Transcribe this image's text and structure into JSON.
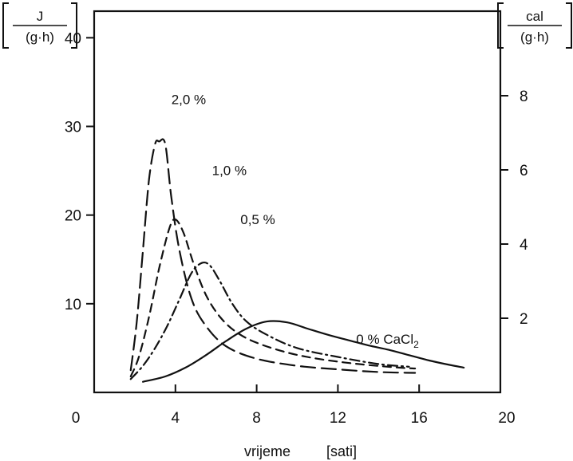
{
  "chart_data": {
    "type": "line",
    "x_label": "vrijeme",
    "x_unit": "[sati]",
    "xlim": [
      0,
      20
    ],
    "x_ticks": [
      "0",
      "4",
      "8",
      "12",
      "16",
      "20"
    ],
    "x_tick_values": [
      0,
      4,
      8,
      12,
      16,
      20
    ],
    "y_left_unit": {
      "numerator": "J",
      "denominator": "(g·h)"
    },
    "y_left_lim": [
      0,
      43
    ],
    "y_left_ticks": [
      "10",
      "20",
      "30",
      "40"
    ],
    "y_left_tick_values": [
      10,
      20,
      30,
      40
    ],
    "y_right_unit": {
      "numerator": "cal",
      "denominator": "(g·h)"
    },
    "y_right_lim": [
      0,
      10.28
    ],
    "y_right_ticks": [
      "2",
      "4",
      "6",
      "8"
    ],
    "y_right_tick_values": [
      2,
      4,
      6,
      8
    ],
    "grid": false,
    "series": [
      {
        "name": "2,0 %",
        "style": "long-dash",
        "label_at": [
          3.8,
          32.5
        ],
        "x": [
          1.8,
          2.1,
          2.4,
          2.7,
          3.0,
          3.2,
          3.5,
          3.8,
          4.2,
          4.8,
          5.5,
          6.5,
          8.0,
          10.0,
          12.0,
          14.0,
          15.8
        ],
        "y": [
          2.5,
          8.0,
          16.0,
          24.0,
          28.0,
          28.3,
          28.0,
          22.0,
          16.0,
          10.5,
          7.5,
          5.2,
          3.8,
          3.0,
          2.6,
          2.3,
          2.2
        ]
      },
      {
        "name": "1,0 %",
        "style": "short-dash",
        "label_at": [
          5.8,
          24.5
        ],
        "x": [
          1.8,
          2.2,
          2.7,
          3.2,
          3.7,
          4.0,
          4.4,
          4.9,
          5.5,
          6.2,
          7.0,
          8.0,
          9.5,
          11.0,
          13.0,
          15.0,
          15.8
        ],
        "y": [
          1.8,
          4.0,
          8.5,
          14.0,
          18.5,
          19.5,
          18.0,
          14.5,
          11.0,
          8.5,
          6.8,
          5.6,
          4.5,
          3.8,
          3.2,
          2.8,
          2.7
        ]
      },
      {
        "name": "0,5 %",
        "style": "dash-dot",
        "label_at": [
          7.2,
          19.0
        ],
        "x": [
          1.8,
          2.4,
          3.0,
          3.6,
          4.2,
          4.8,
          5.3,
          5.7,
          6.2,
          6.8,
          7.5,
          8.5,
          10.0,
          12.0,
          14.0,
          15.5
        ],
        "y": [
          1.5,
          3.0,
          5.0,
          7.5,
          10.5,
          13.5,
          14.6,
          14.3,
          12.5,
          10.0,
          8.0,
          6.5,
          5.0,
          4.0,
          3.2,
          2.9
        ]
      },
      {
        "name": "0 % CaCl2",
        "style": "solid",
        "label_at": [
          12.9,
          5.5
        ],
        "x": [
          2.4,
          3.5,
          4.5,
          5.5,
          6.5,
          7.5,
          8.5,
          9.5,
          10.5,
          11.5,
          12.5,
          13.5,
          14.5,
          15.5,
          16.5,
          17.5,
          18.2
        ],
        "y": [
          1.2,
          1.8,
          2.8,
          4.2,
          5.8,
          7.2,
          8.0,
          7.9,
          7.2,
          6.5,
          5.9,
          5.3,
          4.8,
          4.2,
          3.6,
          3.1,
          2.8
        ]
      }
    ]
  }
}
